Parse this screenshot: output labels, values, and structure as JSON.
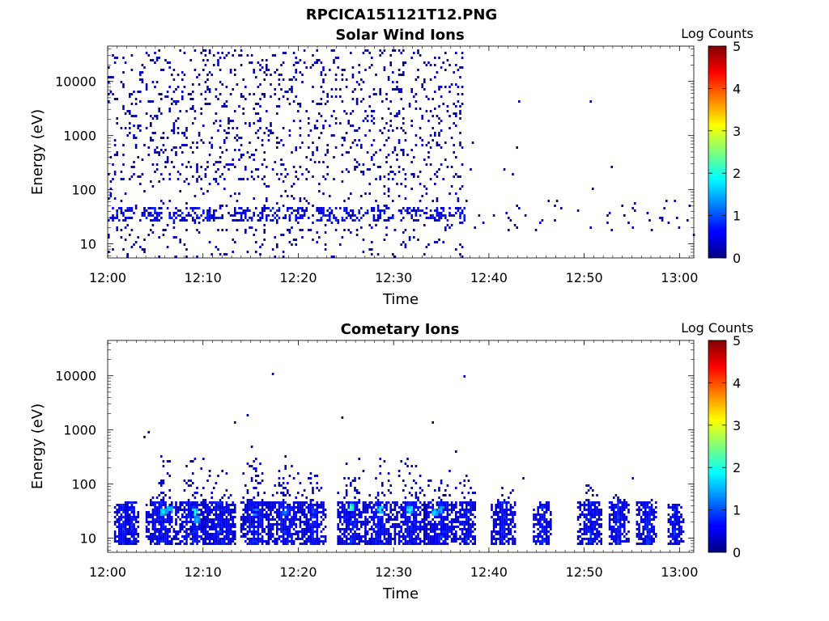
{
  "figure": {
    "title": "RPCICA151121T12.PNG"
  },
  "chart_data": [
    {
      "type": "heatmap",
      "title": "Solar Wind Ions",
      "xlabel": "Time",
      "ylabel": "Energy (eV)",
      "x_ticks": [
        "12:00",
        "12:10",
        "12:20",
        "12:30",
        "12:40",
        "12:50",
        "13:00"
      ],
      "x_range_minutes": [
        0,
        61.5
      ],
      "y_scale": "log",
      "y_ticks": [
        "10",
        "100",
        "1000",
        "10000"
      ],
      "y_range": [
        5.5,
        45000
      ],
      "colorbar": {
        "label": "Log Counts",
        "ticks": [
          "0",
          "1",
          "2",
          "3",
          "4",
          "5"
        ],
        "range": [
          0,
          5
        ],
        "colormap": "jet"
      },
      "regions": [
        {
          "kind": "sparse",
          "t": [
            0,
            37
          ],
          "e": [
            150,
            35000
          ],
          "density": 0.45,
          "level": [
            0.05,
            0.4
          ]
        },
        {
          "kind": "sparse",
          "t": [
            0,
            37
          ],
          "e": [
            18,
            150
          ],
          "density": 0.25,
          "level": [
            0.05,
            0.45
          ]
        },
        {
          "kind": "sparse",
          "t": [
            0,
            37
          ],
          "e": [
            5.5,
            18
          ],
          "density": 0.22,
          "level": [
            0.05,
            0.35
          ]
        },
        {
          "kind": "band",
          "t": [
            0,
            37.3
          ],
          "e": [
            25,
            45
          ],
          "density": 0.45,
          "level": [
            0.15,
            0.85
          ]
        },
        {
          "kind": "sparse",
          "t": [
            37.5,
            61.5
          ],
          "e": [
            18,
            60
          ],
          "density": 0.14,
          "level": [
            0.05,
            0.35
          ]
        }
      ],
      "points": [
        {
          "t": 43,
          "e": 4000,
          "v": 0.1
        },
        {
          "t": 50.5,
          "e": 4200,
          "v": 0.1
        },
        {
          "t": 52.8,
          "e": 240,
          "v": 0.1
        },
        {
          "t": 42.8,
          "e": 550,
          "v": 0.1
        },
        {
          "t": 38.2,
          "e": 700,
          "v": 0.1
        },
        {
          "t": 50.8,
          "e": 100,
          "v": 0.2
        },
        {
          "t": 41.5,
          "e": 220,
          "v": 0.1
        },
        {
          "t": 42.5,
          "e": 180,
          "v": 0.1
        },
        {
          "t": 38,
          "e": 230,
          "v": 0.1
        },
        {
          "t": 61.3,
          "e": 14,
          "v": 0.2
        }
      ]
    },
    {
      "type": "heatmap",
      "title": "Cometary Ions",
      "xlabel": "Time",
      "ylabel": "Energy (eV)",
      "x_ticks": [
        "12:00",
        "12:10",
        "12:20",
        "12:30",
        "12:40",
        "12:50",
        "13:00"
      ],
      "x_range_minutes": [
        0,
        61.5
      ],
      "y_scale": "log",
      "y_ticks": [
        "10",
        "100",
        "1000",
        "10000"
      ],
      "y_range": [
        5.5,
        45000
      ],
      "colorbar": {
        "label": "Log Counts",
        "ticks": [
          "0",
          "1",
          "2",
          "3",
          "4",
          "5"
        ],
        "range": [
          0,
          5
        ],
        "colormap": "jet"
      },
      "plumes": [
        {
          "t": 1.6,
          "w": 1.0,
          "top": 40
        },
        {
          "t": 2.5,
          "w": 0.7,
          "top": 45
        },
        {
          "t": 5.5,
          "w": 1.6,
          "top": 400
        },
        {
          "t": 8.8,
          "w": 1.8,
          "top": 350
        },
        {
          "t": 11.6,
          "w": 1.6,
          "top": 200
        },
        {
          "t": 15.5,
          "w": 1.5,
          "top": 600
        },
        {
          "t": 18.5,
          "w": 1.8,
          "top": 400
        },
        {
          "t": 21.5,
          "w": 1.2,
          "top": 250
        },
        {
          "t": 25.5,
          "w": 1.5,
          "top": 420
        },
        {
          "t": 28.5,
          "w": 1.6,
          "top": 350
        },
        {
          "t": 31.8,
          "w": 1.5,
          "top": 450
        },
        {
          "t": 34.8,
          "w": 1.6,
          "top": 250
        },
        {
          "t": 37.5,
          "w": 1.0,
          "top": 160
        },
        {
          "t": 41.5,
          "w": 1.2,
          "top": 80
        },
        {
          "t": 45.5,
          "w": 0.8,
          "top": 50
        },
        {
          "t": 50.5,
          "w": 1.2,
          "top": 120
        },
        {
          "t": 53.5,
          "w": 1.0,
          "top": 70
        },
        {
          "t": 56.5,
          "w": 1.0,
          "top": 60
        },
        {
          "t": 59.5,
          "w": 0.8,
          "top": 40
        }
      ],
      "hot": [
        {
          "t": 5.8,
          "e": 28,
          "v": 1.9
        },
        {
          "t": 6.5,
          "e": 32,
          "v": 1.6
        },
        {
          "t": 9.0,
          "e": 28,
          "v": 1.9
        },
        {
          "t": 9.3,
          "e": 20,
          "v": 1.6
        },
        {
          "t": 15.5,
          "e": 28,
          "v": 1.4
        },
        {
          "t": 18.5,
          "e": 28,
          "v": 1.3
        },
        {
          "t": 25.5,
          "e": 35,
          "v": 2.4
        },
        {
          "t": 28.5,
          "e": 33,
          "v": 1.8
        },
        {
          "t": 31.5,
          "e": 32,
          "v": 1.9
        },
        {
          "t": 34.2,
          "e": 30,
          "v": 1.7
        },
        {
          "t": 35.0,
          "e": 33,
          "v": 1.6
        }
      ],
      "points": [
        {
          "t": 17.3,
          "e": 10500,
          "v": 0.2
        },
        {
          "t": 37.3,
          "e": 9000,
          "v": 0.2
        },
        {
          "t": 14.5,
          "e": 1800,
          "v": 0.1
        },
        {
          "t": 13.2,
          "e": 1350,
          "v": 0.1
        },
        {
          "t": 24.5,
          "e": 1550,
          "v": 0.1
        },
        {
          "t": 34,
          "e": 1350,
          "v": 0.1
        },
        {
          "t": 4.2,
          "e": 900,
          "v": 0.1
        },
        {
          "t": 3.8,
          "e": 720,
          "v": 0.1
        },
        {
          "t": 55,
          "e": 120,
          "v": 0.1
        },
        {
          "t": 43.5,
          "e": 120,
          "v": 0.1
        },
        {
          "t": 36.5,
          "e": 380,
          "v": 0.1
        }
      ]
    }
  ]
}
